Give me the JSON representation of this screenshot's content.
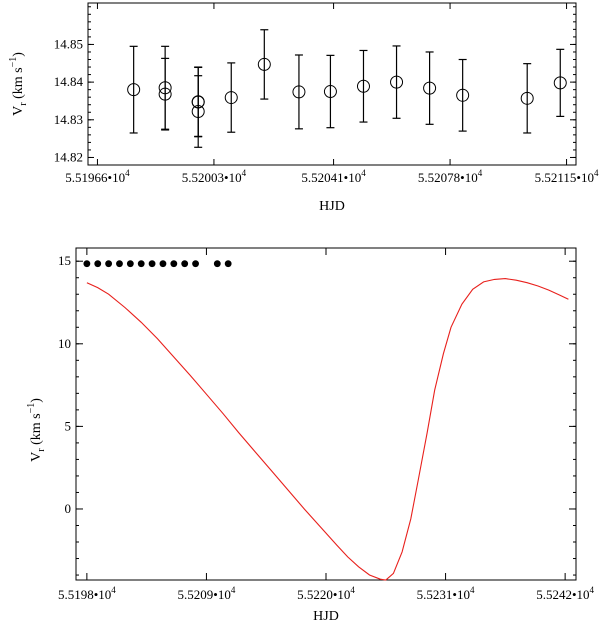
{
  "chart_data": [
    {
      "type": "scatter",
      "title": "",
      "xlabel": "HJD",
      "ylabel_main": "V",
      "ylabel_sub": "r",
      "ylabel_unit": " (km s",
      "ylabel_exp": "−1",
      "ylabel_close": ")",
      "xlim": [
        51963,
        52118
      ],
      "ylim": [
        14.818,
        14.861
      ],
      "x_ticks": [
        51966,
        52003,
        52041,
        52078,
        52115
      ],
      "x_tick_labels": [
        "5.51966•",
        "5.52003•",
        "5.52041•",
        "5.52078•",
        "5.52115•"
      ],
      "x_tick_pow": "10",
      "x_tick_exp": "4",
      "y_ticks": [
        14.82,
        14.83,
        14.84,
        14.85
      ],
      "y_tick_labels": [
        "14.82",
        "14.83",
        "14.84",
        "14.85"
      ],
      "marker": "open-circle",
      "points": [
        {
          "x": 51977.5,
          "y": 14.838,
          "err": 0.0115
        },
        {
          "x": 51987.5,
          "y": 14.8385,
          "err": 0.011
        },
        {
          "x": 51987.5,
          "y": 14.8368,
          "err": 0.0095
        },
        {
          "x": 51998.0,
          "y": 14.8347,
          "err": 0.0092
        },
        {
          "x": 51998.0,
          "y": 14.8348,
          "err": 0.0092
        },
        {
          "x": 51998.0,
          "y": 14.8322,
          "err": 0.0095
        },
        {
          "x": 52008.5,
          "y": 14.8359,
          "err": 0.0092
        },
        {
          "x": 52019.0,
          "y": 14.8447,
          "err": 0.0092
        },
        {
          "x": 52030.0,
          "y": 14.8374,
          "err": 0.0098
        },
        {
          "x": 52040.0,
          "y": 14.8375,
          "err": 0.0096
        },
        {
          "x": 52050.5,
          "y": 14.8389,
          "err": 0.0095
        },
        {
          "x": 52061.0,
          "y": 14.84,
          "err": 0.0096
        },
        {
          "x": 52071.5,
          "y": 14.8384,
          "err": 0.0096
        },
        {
          "x": 52082.0,
          "y": 14.8365,
          "err": 0.0095
        },
        {
          "x": 52102.5,
          "y": 14.8357,
          "err": 0.0092
        },
        {
          "x": 52113.0,
          "y": 14.8398,
          "err": 0.0089
        }
      ]
    },
    {
      "type": "line",
      "title": "",
      "xlabel": "HJD",
      "ylabel_main": "V",
      "ylabel_sub": "r",
      "ylabel_unit": " (km s",
      "ylabel_exp": "−1",
      "ylabel_close": ")",
      "xlim": [
        51970,
        52430
      ],
      "ylim": [
        -4.3,
        15.8
      ],
      "x_ticks": [
        51980,
        52090,
        52200,
        52310,
        52420
      ],
      "x_tick_labels": [
        "5.5198•",
        "5.5209•",
        "5.5220•",
        "5.5231•",
        "5.5242•"
      ],
      "x_tick_pow": "10",
      "x_tick_exp": "4",
      "y_ticks": [
        0,
        5,
        10,
        15
      ],
      "y_tick_labels": [
        "0",
        "5",
        "10",
        "15"
      ],
      "series": [
        {
          "name": "orbit-model",
          "color": "#e8201c",
          "x": [
            51980,
            51990,
            52000,
            52015,
            52030,
            52045,
            52060,
            52075,
            52090,
            52105,
            52120,
            52135,
            52150,
            52165,
            52180,
            52195,
            52210,
            52220,
            52230,
            52240,
            52250,
            52255,
            52262,
            52270,
            52278,
            52285,
            52293,
            52300,
            52308,
            52315,
            52325,
            52335,
            52345,
            52355,
            52365,
            52375,
            52385,
            52395,
            52405,
            52415,
            52423
          ],
          "y": [
            13.7,
            13.4,
            13.0,
            12.2,
            11.3,
            10.3,
            9.2,
            8.1,
            6.95,
            5.8,
            4.6,
            3.45,
            2.3,
            1.15,
            0.0,
            -1.1,
            -2.2,
            -2.9,
            -3.5,
            -4.0,
            -4.25,
            -4.3,
            -3.9,
            -2.6,
            -0.6,
            1.8,
            4.6,
            7.2,
            9.4,
            11.0,
            12.4,
            13.3,
            13.75,
            13.9,
            13.95,
            13.85,
            13.7,
            13.5,
            13.25,
            12.95,
            12.7
          ]
        },
        {
          "name": "observations",
          "color": "#000000",
          "x": [
            51980,
            51990,
            52000,
            52010,
            52020,
            52030,
            52040,
            52050,
            52060,
            52070,
            52080,
            52100,
            52110
          ],
          "y": [
            14.85,
            14.85,
            14.85,
            14.85,
            14.85,
            14.85,
            14.85,
            14.85,
            14.85,
            14.85,
            14.85,
            14.85,
            14.85
          ]
        }
      ]
    }
  ]
}
